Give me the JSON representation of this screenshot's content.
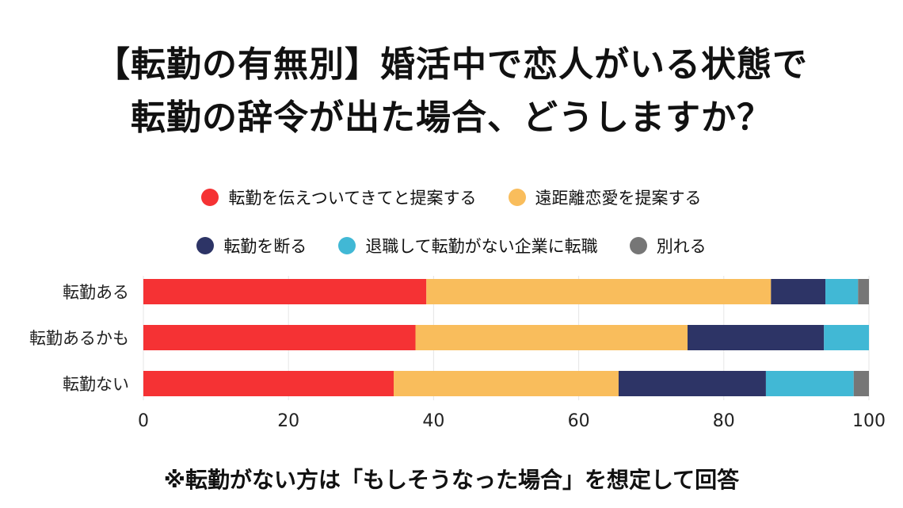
{
  "title_lines": [
    "【転勤の有無別】婚活中で恋人がいる状態で",
    "転勤の辞令が出た場合、どうしますか？"
  ],
  "footnote": "※転勤がない方は「もしそうなった場合」を想定して回答",
  "colors": {
    "series": [
      "#f53234",
      "#f9bd5c",
      "#2d3466",
      "#41b8d5",
      "#767676"
    ],
    "grid": "#e6e6e6"
  },
  "chart_data": {
    "type": "bar",
    "orientation": "horizontal",
    "stacked": true,
    "categories": [
      "転勤ある",
      "転勤あるかも",
      "転勤ない"
    ],
    "series": [
      {
        "name": "転勤を伝えついてきてと提案する",
        "values": [
          39,
          37.5,
          34.5
        ]
      },
      {
        "name": "遠距離恋愛を提案する",
        "values": [
          47.5,
          37.5,
          31
        ]
      },
      {
        "name": "転勤を断る",
        "values": [
          7.5,
          18.8,
          20.3
        ]
      },
      {
        "name": "退職して転勤がない企業に転職",
        "values": [
          4.5,
          6.2,
          12.1
        ]
      },
      {
        "name": "別れる",
        "values": [
          1.5,
          0,
          2.1
        ]
      }
    ],
    "xlim": [
      0,
      100
    ],
    "xticks": [
      0,
      20,
      40,
      60,
      80,
      100
    ],
    "grid": true,
    "legend_position": "top"
  }
}
